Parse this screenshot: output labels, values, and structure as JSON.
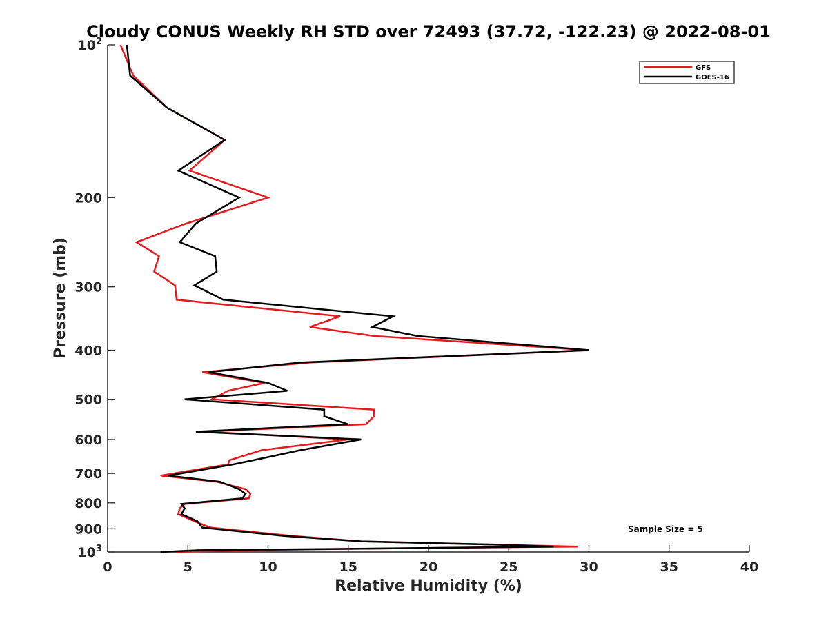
{
  "chart_data": {
    "type": "line",
    "title": "Cloudy CONUS Weekly RH STD over 72493 (37.72, -122.23) @ 2022-08-01",
    "xlabel": "Relative Humidity (%)",
    "ylabel": "Pressure (mb)",
    "xlim": [
      0,
      40
    ],
    "ylim": [
      100,
      1000
    ],
    "y_scale": "log",
    "y_reversed": true,
    "grid": false,
    "legend_position": "top-right",
    "x_ticks": [
      "0",
      "5",
      "10",
      "15",
      "20",
      "25",
      "30",
      "35",
      "40"
    ],
    "y_ticks": [
      {
        "value": 100,
        "base": "10",
        "exp": "2"
      },
      {
        "value": 200,
        "label": "200"
      },
      {
        "value": 300,
        "label": "300"
      },
      {
        "value": 400,
        "label": "400"
      },
      {
        "value": 500,
        "label": "500"
      },
      {
        "value": 600,
        "label": "600"
      },
      {
        "value": 700,
        "label": "700"
      },
      {
        "value": 800,
        "label": "800"
      },
      {
        "value": 900,
        "label": "900"
      },
      {
        "value": 1000,
        "base": "10",
        "exp": "3"
      }
    ],
    "annotation": "Sample Size = 5",
    "series": [
      {
        "name": "GFS",
        "color": "#e41a1c",
        "points": [
          [
            0.8,
            100
          ],
          [
            1.6,
            115
          ],
          [
            3.7,
            133
          ],
          [
            7.3,
            154
          ],
          [
            5.1,
            177
          ],
          [
            10.0,
            200
          ],
          [
            4.9,
            225
          ],
          [
            1.8,
            245
          ],
          [
            3.2,
            261
          ],
          [
            2.9,
            280
          ],
          [
            4.2,
            298
          ],
          [
            4.3,
            318
          ],
          [
            14.5,
            343
          ],
          [
            12.6,
            360
          ],
          [
            16.6,
            375
          ],
          [
            30.0,
            400
          ],
          [
            12.6,
            423
          ],
          [
            5.9,
            442
          ],
          [
            9.8,
            464
          ],
          [
            7.5,
            481
          ],
          [
            6.5,
            500
          ],
          [
            16.6,
            524
          ],
          [
            16.6,
            540
          ],
          [
            16.1,
            560
          ],
          [
            6.0,
            579
          ],
          [
            15.0,
            600
          ],
          [
            9.6,
            630
          ],
          [
            7.6,
            659
          ],
          [
            7.5,
            672
          ],
          [
            3.3,
            707
          ],
          [
            6.8,
            727
          ],
          [
            8.6,
            752
          ],
          [
            8.9,
            768
          ],
          [
            8.8,
            784
          ],
          [
            4.8,
            804
          ],
          [
            4.5,
            820
          ],
          [
            4.4,
            842
          ],
          [
            5.4,
            870
          ],
          [
            6.4,
            895
          ],
          [
            11.5,
            930
          ],
          [
            15.8,
            953
          ],
          [
            24.1,
            967
          ],
          [
            29.3,
            976
          ],
          [
            15.8,
            985
          ],
          [
            8.6,
            992
          ],
          [
            4.3,
            1000
          ]
        ]
      },
      {
        "name": "GOES-16",
        "color": "#000000",
        "points": [
          [
            1.2,
            100
          ],
          [
            1.4,
            115
          ],
          [
            3.7,
            133
          ],
          [
            7.3,
            154
          ],
          [
            4.4,
            177
          ],
          [
            8.2,
            200
          ],
          [
            5.5,
            225
          ],
          [
            4.5,
            245
          ],
          [
            6.7,
            261
          ],
          [
            6.8,
            280
          ],
          [
            5.4,
            298
          ],
          [
            7.2,
            318
          ],
          [
            17.8,
            343
          ],
          [
            16.5,
            360
          ],
          [
            19.3,
            375
          ],
          [
            30.0,
            400
          ],
          [
            12.0,
            423
          ],
          [
            6.3,
            442
          ],
          [
            10.0,
            464
          ],
          [
            11.2,
            481
          ],
          [
            4.8,
            500
          ],
          [
            13.5,
            524
          ],
          [
            13.5,
            540
          ],
          [
            15.0,
            560
          ],
          [
            5.5,
            579
          ],
          [
            15.8,
            600
          ],
          [
            12.0,
            630
          ],
          [
            9.1,
            659
          ],
          [
            7.8,
            672
          ],
          [
            3.8,
            707
          ],
          [
            7.0,
            727
          ],
          [
            8.2,
            752
          ],
          [
            8.6,
            768
          ],
          [
            8.4,
            784
          ],
          [
            4.6,
            804
          ],
          [
            4.8,
            820
          ],
          [
            4.6,
            842
          ],
          [
            5.6,
            870
          ],
          [
            5.9,
            895
          ],
          [
            11.0,
            930
          ],
          [
            15.8,
            953
          ],
          [
            24.1,
            967
          ],
          [
            27.8,
            976
          ],
          [
            15.8,
            985
          ],
          [
            5.7,
            992
          ],
          [
            3.3,
            1000
          ]
        ]
      }
    ]
  }
}
